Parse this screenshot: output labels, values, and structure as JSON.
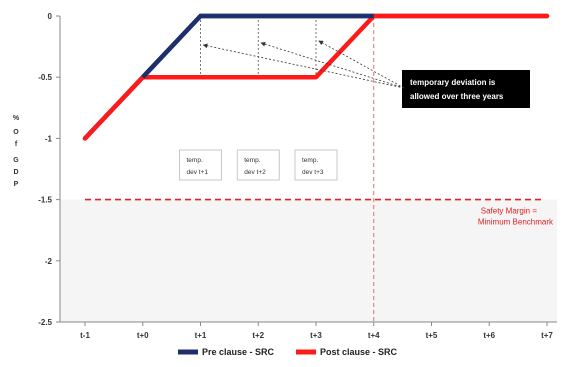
{
  "chart_data": {
    "type": "line",
    "categories": [
      "t-1",
      "t+0",
      "t+1",
      "t+2",
      "t+3",
      "t+4",
      "t+5",
      "t+6",
      "t+7"
    ],
    "ylabel_chars": [
      "%",
      "O",
      "f",
      "G",
      "D",
      "P"
    ],
    "ylim": [
      -2.5,
      0
    ],
    "yticks": [
      0,
      -0.5,
      -1,
      -1.5,
      -2,
      -2.5
    ],
    "ytick_labels": [
      "0",
      "-0.5",
      "-1",
      "-1.5",
      "-2",
      "-2.5"
    ],
    "grid": false,
    "series": [
      {
        "name": "Pre clause - SRC",
        "color": "#1f2f6b",
        "points": [
          [
            0,
            -1
          ],
          [
            1,
            -0.5
          ],
          [
            2,
            0
          ],
          [
            3,
            0
          ],
          [
            4,
            0
          ],
          [
            5,
            0
          ],
          [
            6,
            0
          ],
          [
            7,
            0
          ],
          [
            8,
            0
          ]
        ]
      },
      {
        "name": "Post clause - SRC",
        "color": "#ff1a1a",
        "points": [
          [
            0,
            -1
          ],
          [
            1,
            -0.5
          ],
          [
            2,
            -0.5
          ],
          [
            3,
            -0.5
          ],
          [
            4,
            -0.5
          ],
          [
            5,
            0
          ],
          [
            6,
            0
          ],
          [
            7,
            0
          ],
          [
            8,
            0
          ]
        ]
      }
    ],
    "safety_margin": {
      "value": -1.5,
      "label_line1": "Safety Margin =",
      "label_line2": "Minimum Benchmark",
      "color": "#e02020"
    },
    "deadline_x": 5,
    "temp_boxes": [
      {
        "x": 2,
        "line1": "temp.",
        "line2": "dev t+1"
      },
      {
        "x": 3,
        "line1": "temp.",
        "line2": "dev t+2"
      },
      {
        "x": 4,
        "line1": "temp.",
        "line2": "dev t+3"
      }
    ],
    "callout": {
      "line1": "temporary deviation is",
      "line2": "allowed over three years"
    },
    "legend_position": "bottom"
  }
}
